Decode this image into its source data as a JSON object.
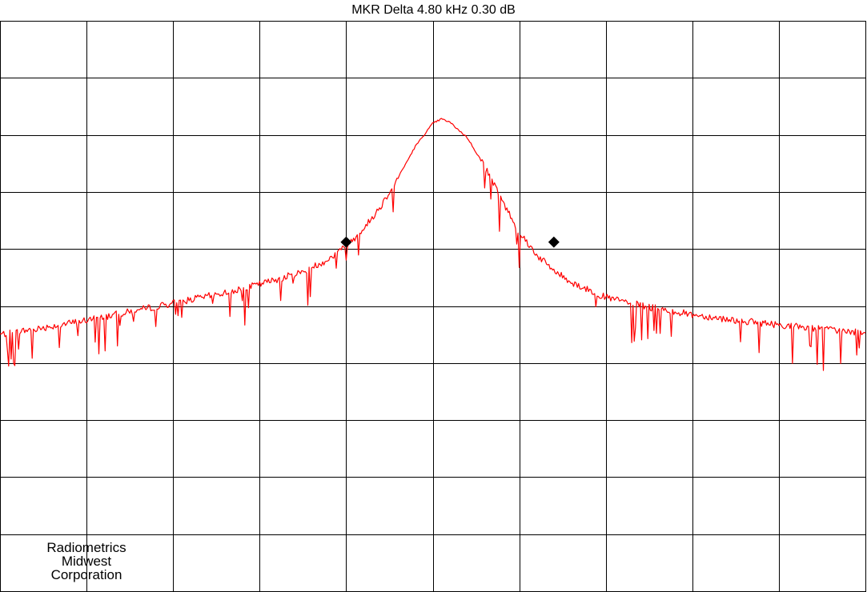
{
  "marker_readout": "MKR Delta  4.80 kHz   0.30 dB",
  "company_lines": [
    "Radiometrics",
    "Midwest",
    "Corporation"
  ],
  "colors": {
    "trace": "#ff0000",
    "grid": "#000000",
    "marker": "#000000",
    "background": "#ffffff"
  },
  "chart_data": {
    "type": "line",
    "title": "MKR Delta  4.80 kHz   0.30 dB",
    "xlabel": "",
    "ylabel": "",
    "grid": true,
    "divisions": {
      "x": 10,
      "y": 10
    },
    "xlim": [
      0,
      10
    ],
    "ylim": [
      0,
      10
    ],
    "units": "screen divisions (no frequency or amplitude scale printed)",
    "series": [
      {
        "x": [
          0,
          0.5,
          1,
          1.5,
          2,
          2.5,
          3,
          3.5,
          3.8,
          4,
          4.2,
          4.4,
          4.6,
          4.8,
          5,
          5.1,
          5.2,
          5.4,
          5.6,
          5.8,
          6,
          6.2,
          6.4,
          6.6,
          6.8,
          7,
          7.5,
          8,
          8.5,
          9,
          9.5,
          10
        ],
        "y": [
          4.5,
          4.62,
          4.75,
          4.9,
          5.05,
          5.2,
          5.38,
          5.6,
          5.82,
          6.05,
          6.35,
          6.75,
          7.25,
          7.8,
          8.2,
          8.28,
          8.22,
          7.95,
          7.45,
          6.85,
          6.3,
          5.9,
          5.62,
          5.42,
          5.28,
          5.15,
          4.98,
          4.85,
          4.75,
          4.67,
          4.6,
          4.52
        ]
      }
    ],
    "markers": [
      {
        "label": "reference",
        "x": 4.0,
        "y": 6.12
      },
      {
        "label": "delta",
        "x": 6.4,
        "y": 6.12
      }
    ]
  }
}
